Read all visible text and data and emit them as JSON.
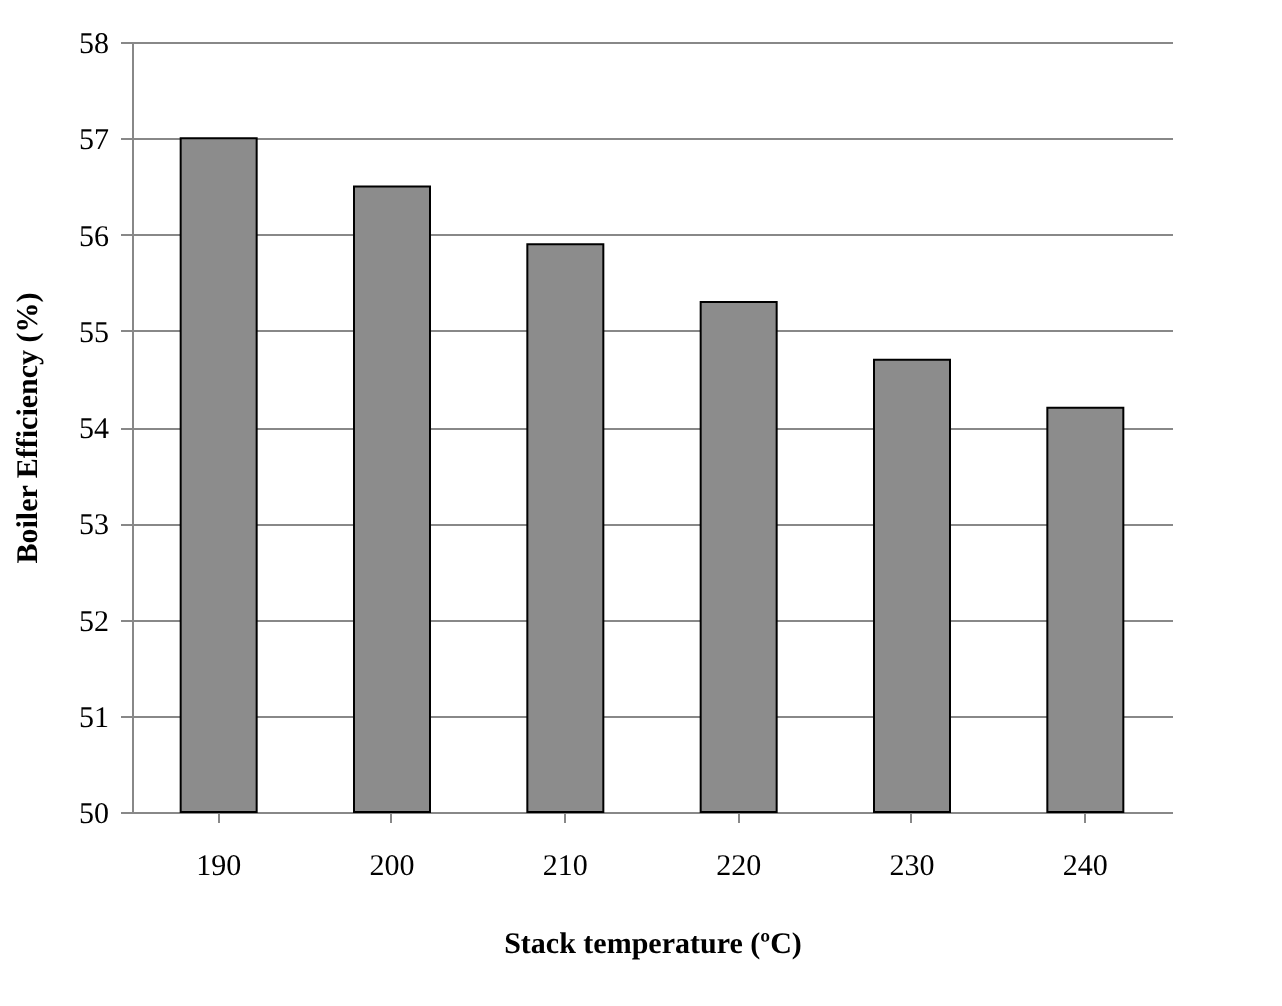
{
  "chart_data": {
    "type": "bar",
    "xlabel": "Stack temperature (ºC)",
    "ylabel": "Boiler Efficiency (%)",
    "categories": [
      "190",
      "200",
      "210",
      "220",
      "230",
      "240"
    ],
    "values": [
      57.0,
      56.5,
      55.9,
      55.3,
      54.7,
      54.2
    ],
    "color": "#8c8c8c",
    "ylim": [
      50,
      58
    ],
    "yticks": [
      50,
      51,
      52,
      53,
      54,
      55,
      56,
      57,
      58
    ],
    "grid": "y"
  }
}
